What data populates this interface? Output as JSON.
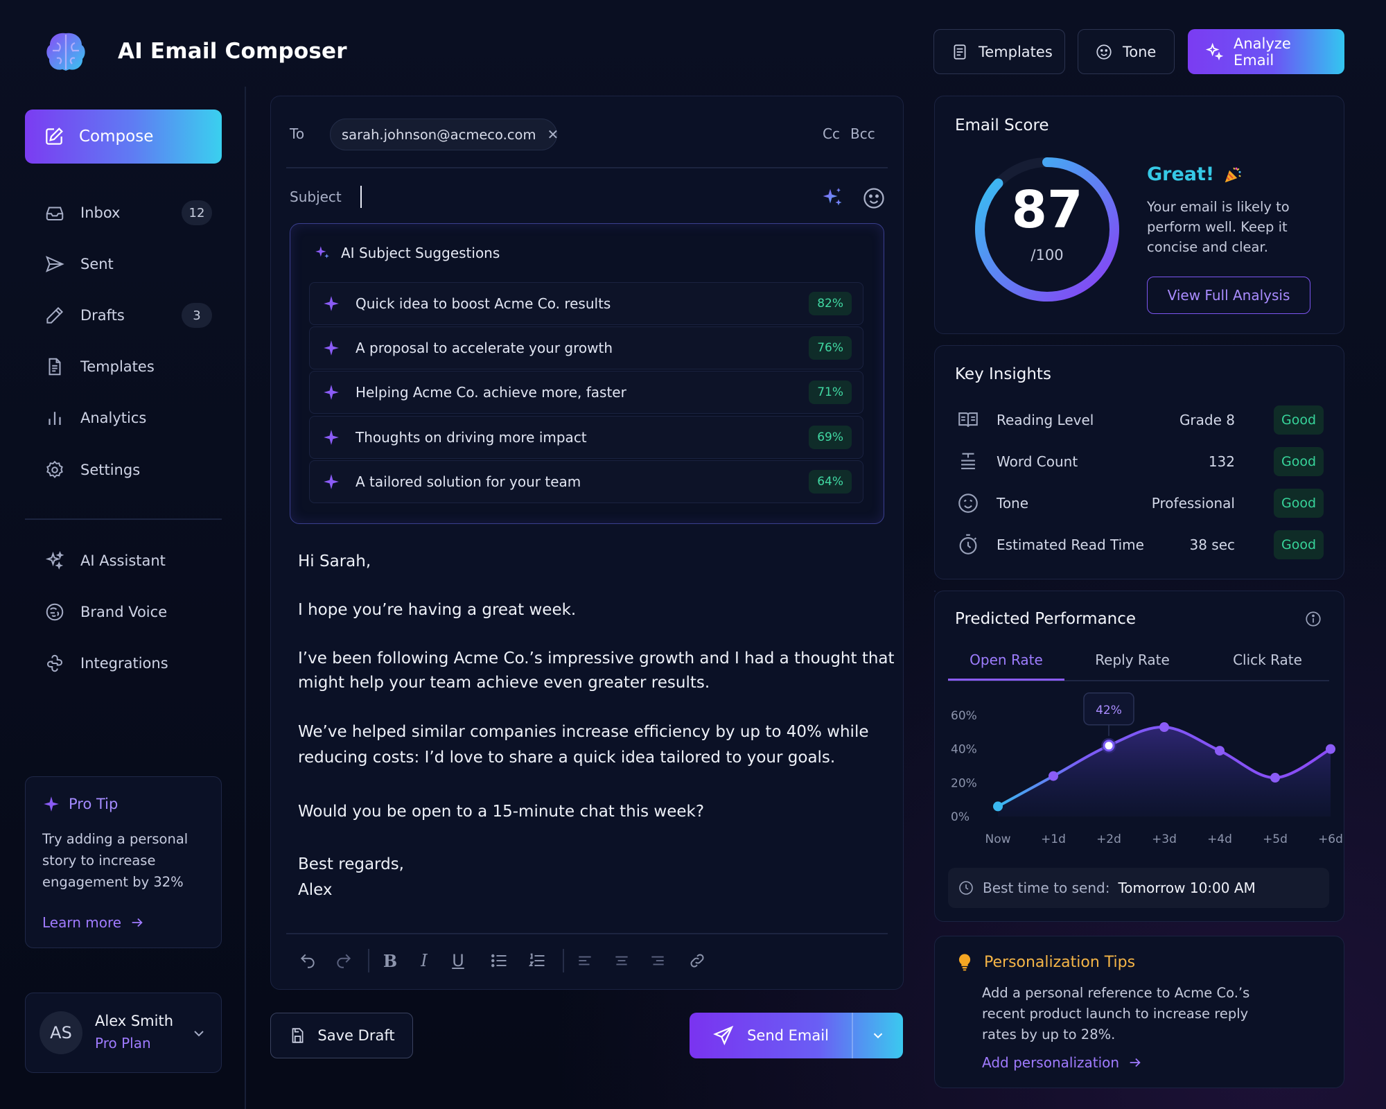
{
  "app": {
    "title": "AI Email Composer"
  },
  "header": {
    "templates_label": "Templates",
    "tone_label": "Tone",
    "analyze_label": "Analyze Email"
  },
  "sidebar": {
    "compose_label": "Compose",
    "items": [
      {
        "label": "Inbox",
        "icon": "inbox-icon",
        "badge": "12"
      },
      {
        "label": "Sent",
        "icon": "send-icon",
        "badge": ""
      },
      {
        "label": "Drafts",
        "icon": "pencil-icon",
        "badge": "3"
      },
      {
        "label": "Templates",
        "icon": "document-icon",
        "badge": ""
      },
      {
        "label": "Analytics",
        "icon": "bar-chart-icon",
        "badge": ""
      },
      {
        "label": "Settings",
        "icon": "gear-icon",
        "badge": ""
      }
    ],
    "extras": [
      {
        "label": "AI Assistant",
        "icon": "sparkle-icon"
      },
      {
        "label": "Brand Voice",
        "icon": "brand-voice-icon"
      },
      {
        "label": "Integrations",
        "icon": "integrations-icon"
      }
    ],
    "pro_tip": {
      "title": "Pro Tip",
      "lines": [
        "Try adding a personal",
        "story to increase",
        "engagement by 32%"
      ],
      "link": "Learn more"
    },
    "user": {
      "initials": "AS",
      "name": "Alex Smith",
      "plan": "Pro Plan"
    }
  },
  "composer": {
    "to_label": "To",
    "recipient": "sarah.johnson@acmeco.com",
    "cc_label": "Cc",
    "bcc_label": "Bcc",
    "subject_label": "Subject",
    "subject_value": "",
    "suggestions_title": "AI Subject Suggestions",
    "suggestions": [
      {
        "text": "Quick idea to boost Acme Co. results",
        "score": "82%"
      },
      {
        "text": "A proposal to accelerate your growth",
        "score": "76%"
      },
      {
        "text": "Helping Acme Co. achieve more, faster",
        "score": "71%"
      },
      {
        "text": "Thoughts on driving more impact",
        "score": "69%"
      },
      {
        "text": "A tailored solution for your team",
        "score": "64%"
      }
    ],
    "body": {
      "greeting": "Hi Sarah,",
      "p1": "I hope you’re having a great week.",
      "p2a": "I’ve been following Acme Co.’s impressive growth and I had a thought that",
      "p2b": "might help your team achieve even greater results.",
      "p3a": "We’ve helped similar companies increase efficiency by up to 40% while",
      "p3b": "reducing costs: I’d love to share a quick idea tailored to your goals.",
      "p4": "Would you be open to a 15-minute chat this week?",
      "signoff": "Best regards,",
      "signature": "Alex"
    },
    "save_label": "Save Draft",
    "send_label": "Send Email"
  },
  "score": {
    "title": "Email Score",
    "value": "87",
    "max": "/100",
    "fraction": 0.87,
    "headline": "Great!",
    "desc": [
      "Your email is likely to",
      "perform well. Keep it",
      "concise and clear."
    ],
    "button": "View Full Analysis"
  },
  "insights": {
    "title": "Key Insights",
    "rows": [
      {
        "label": "Reading Level",
        "value": "Grade 8",
        "status": "Good",
        "icon": "book-icon"
      },
      {
        "label": "Word Count",
        "value": "132",
        "status": "Good",
        "icon": "text-lines-icon"
      },
      {
        "label": "Tone",
        "value": "Professional",
        "status": "Good",
        "icon": "smiley-icon"
      },
      {
        "label": "Estimated Read Time",
        "value": "38 sec",
        "status": "Good",
        "icon": "stopwatch-icon"
      }
    ]
  },
  "performance": {
    "title": "Predicted Performance",
    "tabs": [
      "Open Rate",
      "Reply Rate",
      "Click Rate"
    ],
    "active_tab": "Open Rate",
    "best_time_label": "Best time to send:",
    "best_time_value": "Tomorrow 10:00 AM"
  },
  "chart_data": {
    "type": "area",
    "x": [
      "Now",
      "+1d",
      "+2d",
      "+3d",
      "+4d",
      "+5d",
      "+6d"
    ],
    "values": [
      6,
      24,
      42,
      53,
      39,
      23,
      40
    ],
    "yticks": [
      "0%",
      "20%",
      "40%",
      "60%"
    ],
    "ylim": [
      0,
      60
    ],
    "highlight": {
      "index": 2,
      "label": "42%"
    },
    "grid": false
  },
  "personalization": {
    "title": "Personalization Tips",
    "lines": [
      "Add a personal reference to Acme Co.’s",
      "recent product launch to increase reply",
      "rates by up to 28%."
    ],
    "link": "Add personalization"
  }
}
